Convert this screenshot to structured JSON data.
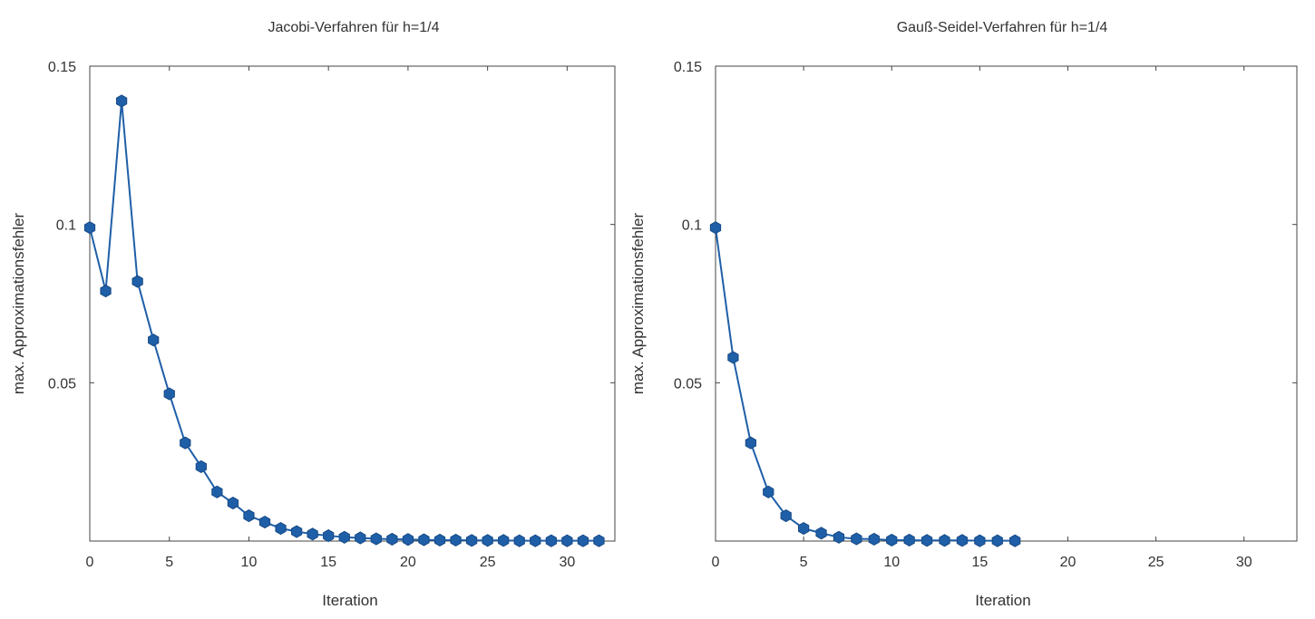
{
  "chart_data": [
    {
      "type": "line",
      "title": "Jacobi-Verfahren für h=1/4",
      "xlabel": "Iteration",
      "ylabel": "max. Approximationsfehler",
      "xlim": [
        0,
        33
      ],
      "ylim": [
        0,
        0.15
      ],
      "xticks": [
        "0",
        "5",
        "10",
        "15",
        "20",
        "25",
        "30"
      ],
      "yticks": [
        "0.05",
        "0.1",
        "0.15"
      ],
      "grid": false,
      "series": [
        {
          "color": "#1f5fa8",
          "x": [
            0,
            1,
            2,
            3,
            4,
            5,
            6,
            7,
            8,
            9,
            10,
            11,
            12,
            13,
            14,
            15,
            16,
            17,
            18,
            19,
            20,
            21,
            22,
            23,
            24,
            25,
            26,
            27,
            28,
            29,
            30,
            31,
            32
          ],
          "y": [
            0.099,
            0.079,
            0.139,
            0.082,
            0.0635,
            0.0465,
            0.031,
            0.0235,
            0.0155,
            0.012,
            0.008,
            0.006,
            0.004,
            0.003,
            0.0022,
            0.0017,
            0.0012,
            0.001,
            0.0007,
            0.0006,
            0.0005,
            0.0004,
            0.0003,
            0.0003,
            0.0002,
            0.0002,
            0.0002,
            0.0001,
            0.0001,
            0.0001,
            0.0001,
            0.0001,
            0.0001
          ]
        }
      ]
    },
    {
      "type": "line",
      "title": "Gauß-Seidel-Verfahren für h=1/4",
      "xlabel": "Iteration",
      "ylabel": "max. Approximationsfehler",
      "xlim": [
        0,
        33
      ],
      "ylim": [
        0,
        0.15
      ],
      "xticks": [
        "0",
        "5",
        "10",
        "15",
        "20",
        "25",
        "30"
      ],
      "yticks": [
        "0.05",
        "0.1",
        "0.15"
      ],
      "grid": false,
      "series": [
        {
          "color": "#1f5fa8",
          "x": [
            0,
            1,
            2,
            3,
            4,
            5,
            6,
            7,
            8,
            9,
            10,
            11,
            12,
            13,
            14,
            15,
            16,
            17
          ],
          "y": [
            0.099,
            0.058,
            0.031,
            0.0155,
            0.008,
            0.004,
            0.0025,
            0.0012,
            0.0007,
            0.0006,
            0.0003,
            0.0003,
            0.0002,
            0.0002,
            0.0002,
            0.0001,
            0.0001,
            0.0001
          ]
        }
      ]
    }
  ]
}
